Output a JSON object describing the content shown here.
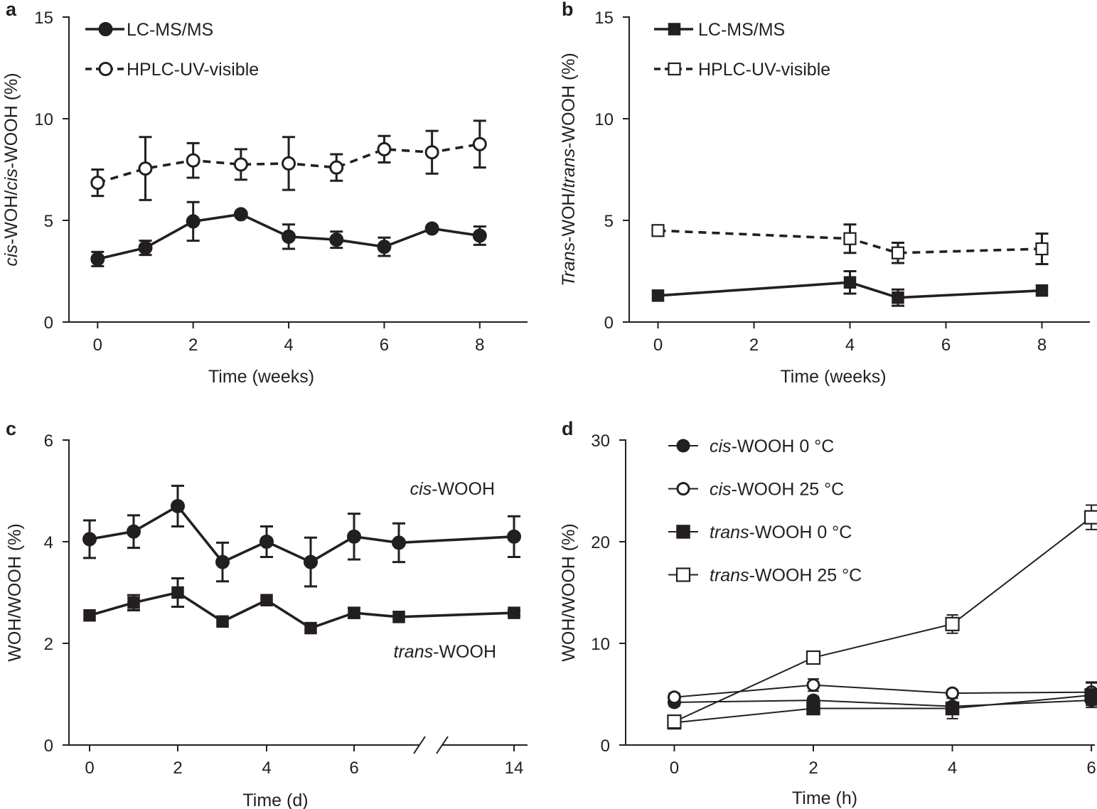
{
  "colors": {
    "ink": "#231f20",
    "background": "#ffffff"
  },
  "chart_data": [
    {
      "panel": "a",
      "type": "line",
      "xlabel": "Time (weeks)",
      "ylabel": [
        {
          "text": "cis",
          "italic": true
        },
        {
          "text": "-WOH/",
          "italic": false
        },
        {
          "text": "cis",
          "italic": true
        },
        {
          "text": "-WOOH (%)",
          "italic": false
        }
      ],
      "xlim": [
        -0.6,
        9
      ],
      "ylim": [
        0,
        15
      ],
      "xticks": [
        0,
        2,
        4,
        6,
        8
      ],
      "yticks": [
        0,
        5,
        10,
        15
      ],
      "legend_position": "top-left",
      "series": [
        {
          "name": "LC-MS/MS",
          "marker": "circle",
          "filled": true,
          "dashed": false,
          "marker_size": "large",
          "error_cap": true,
          "x": [
            0,
            1,
            2,
            3,
            4,
            5,
            6,
            7,
            8
          ],
          "y": [
            3.1,
            3.65,
            4.95,
            5.3,
            4.2,
            4.05,
            3.7,
            4.6,
            4.25
          ],
          "err": [
            0.35,
            0.35,
            0.95,
            0.0,
            0.6,
            0.4,
            0.45,
            0.0,
            0.45
          ]
        },
        {
          "name": "HPLC-UV-visible",
          "marker": "circle",
          "filled": false,
          "dashed": true,
          "marker_size": "large",
          "error_cap": true,
          "x": [
            0,
            1,
            2,
            3,
            4,
            5,
            6,
            7,
            8
          ],
          "y": [
            6.85,
            7.55,
            7.95,
            7.75,
            7.8,
            7.6,
            8.5,
            8.35,
            8.75
          ],
          "err": [
            0.65,
            1.55,
            0.85,
            0.75,
            1.3,
            0.65,
            0.65,
            1.05,
            1.15
          ]
        }
      ]
    },
    {
      "panel": "b",
      "type": "line",
      "xlabel": "Time (weeks)",
      "ylabel": [
        {
          "text": "Trans",
          "italic": true
        },
        {
          "text": "-WOH/",
          "italic": false
        },
        {
          "text": "trans",
          "italic": true
        },
        {
          "text": "-WOOH (%)",
          "italic": false
        }
      ],
      "xlim": [
        -0.6,
        9
      ],
      "ylim": [
        0,
        15
      ],
      "xticks": [
        0,
        2,
        4,
        6,
        8
      ],
      "yticks": [
        0,
        5,
        10,
        15
      ],
      "legend_position": "top-left",
      "series": [
        {
          "name": "LC-MS/MS",
          "marker": "square",
          "filled": true,
          "dashed": false,
          "marker_size": "large",
          "error_cap": true,
          "x": [
            0,
            4,
            5,
            8
          ],
          "y": [
            1.3,
            1.95,
            1.2,
            1.55
          ],
          "err": [
            0.0,
            0.55,
            0.4,
            0.0
          ]
        },
        {
          "name": "HPLC-UV-visible",
          "marker": "square",
          "filled": false,
          "dashed": true,
          "marker_size": "large",
          "error_cap": true,
          "x": [
            0,
            4,
            5,
            8
          ],
          "y": [
            4.5,
            4.1,
            3.4,
            3.6
          ],
          "err": [
            0.0,
            0.7,
            0.5,
            0.75
          ]
        }
      ]
    },
    {
      "panel": "c",
      "type": "line",
      "xlabel": "Time (d)",
      "ylabel": [
        {
          "text": "WOH/WOOH (%)",
          "italic": false
        }
      ],
      "ylim": [
        0,
        6
      ],
      "xticks": [
        0,
        2,
        4,
        6,
        14
      ],
      "yticks": [
        0,
        2,
        4,
        6
      ],
      "axis_break": "between 6 and 14",
      "annotations": [
        {
          "target": "cis-WOOH",
          "parts": [
            {
              "text": "cis",
              "italic": true
            },
            {
              "text": "-WOOH",
              "italic": false
            }
          ]
        },
        {
          "target": "trans-WOOH",
          "parts": [
            {
              "text": "trans",
              "italic": true
            },
            {
              "text": "-WOOH",
              "italic": false
            }
          ]
        }
      ],
      "series": [
        {
          "name": "cis-WOOH",
          "marker": "circle",
          "filled": true,
          "dashed": false,
          "marker_size": "large",
          "error_cap": true,
          "x": [
            0,
            1,
            2,
            3,
            4,
            5,
            6,
            7,
            14
          ],
          "y": [
            4.05,
            4.2,
            4.7,
            3.6,
            4.0,
            3.6,
            4.1,
            3.98,
            4.1
          ],
          "err": [
            0.37,
            0.32,
            0.4,
            0.38,
            0.3,
            0.48,
            0.45,
            0.38,
            0.4
          ]
        },
        {
          "name": "trans-WOOH",
          "marker": "square",
          "filled": true,
          "dashed": false,
          "marker_size": "large",
          "error_cap": true,
          "x": [
            0,
            1,
            2,
            3,
            4,
            5,
            6,
            7,
            14
          ],
          "y": [
            2.55,
            2.8,
            3.0,
            2.43,
            2.85,
            2.3,
            2.6,
            2.52,
            2.6
          ],
          "err": [
            0.0,
            0.15,
            0.28,
            0.0,
            0.0,
            0.0,
            0.1,
            0.0,
            0.05
          ]
        }
      ]
    },
    {
      "panel": "d",
      "type": "line",
      "xlabel": "Time (h)",
      "ylabel": [
        {
          "text": "WOH/WOOH (%)",
          "italic": false
        }
      ],
      "xlim": [
        -0.7,
        6.05
      ],
      "ylim": [
        0,
        30
      ],
      "xticks": [
        0,
        2,
        4,
        6
      ],
      "yticks": [
        0,
        10,
        20,
        30
      ],
      "legend_position": "top-left",
      "series": [
        {
          "name": "cis-WOOH 0 °C",
          "label_parts": [
            {
              "text": "cis",
              "italic": true
            },
            {
              "text": "-WOOH 0 °C",
              "italic": false
            }
          ],
          "marker": "circle",
          "filled": true,
          "dashed": false,
          "marker_size": "medium",
          "error_cap": true,
          "x": [
            0,
            2,
            4,
            6
          ],
          "y": [
            4.2,
            4.4,
            3.8,
            4.4
          ],
          "err": [
            0.4,
            0.4,
            0.3,
            0.5
          ]
        },
        {
          "name": "cis-WOOH 25 °C",
          "label_parts": [
            {
              "text": "cis",
              "italic": true
            },
            {
              "text": "-WOOH 25 °C",
              "italic": false
            }
          ],
          "marker": "circle",
          "filled": false,
          "dashed": false,
          "marker_size": "medium",
          "error_cap": true,
          "x": [
            0,
            2,
            4,
            6
          ],
          "y": [
            4.7,
            5.9,
            5.1,
            5.2
          ],
          "err": [
            0.4,
            0.6,
            0.3,
            1.0
          ]
        },
        {
          "name": "trans-WOOH 0 °C",
          "label_parts": [
            {
              "text": "trans",
              "italic": true
            },
            {
              "text": "-WOOH 0 °C",
              "italic": false
            }
          ],
          "marker": "square",
          "filled": true,
          "dashed": false,
          "marker_size": "medium",
          "error_cap": true,
          "x": [
            0,
            2,
            4,
            6
          ],
          "y": [
            2.2,
            3.6,
            3.6,
            4.9
          ],
          "err": [
            0.0,
            0.5,
            1.0,
            1.2
          ]
        },
        {
          "name": "trans-WOOH 25 °C",
          "label_parts": [
            {
              "text": "trans",
              "italic": true
            },
            {
              "text": "-WOOH 25 °C",
              "italic": false
            }
          ],
          "marker": "square",
          "filled": false,
          "dashed": false,
          "marker_size": "medium",
          "error_cap": true,
          "x": [
            0,
            2,
            4,
            6
          ],
          "y": [
            2.3,
            8.6,
            11.9,
            22.4
          ],
          "err": [
            0.0,
            0.0,
            0.9,
            1.2
          ]
        }
      ]
    }
  ]
}
